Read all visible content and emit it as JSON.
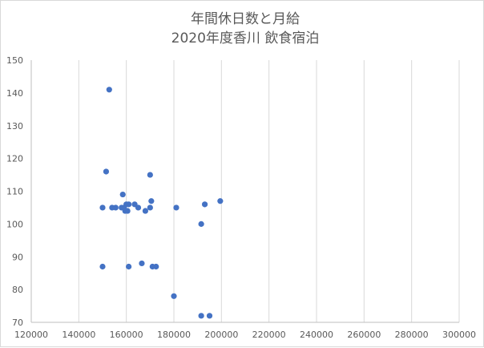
{
  "chart_data": {
    "type": "scatter",
    "title": [
      "年間休日数と月給",
      "2020年度香川 飲食宿泊"
    ],
    "xlabel": "",
    "ylabel": "",
    "xlim": [
      120000,
      300000
    ],
    "ylim": [
      70,
      150
    ],
    "x_ticks": [
      120000,
      140000,
      160000,
      180000,
      200000,
      220000,
      240000,
      260000,
      280000,
      300000
    ],
    "y_ticks": [
      70,
      80,
      90,
      100,
      110,
      120,
      130,
      140,
      150
    ],
    "grid": {
      "vertical": true,
      "horizontal": false
    },
    "series": [
      {
        "color": "#4472c4",
        "points": [
          [
            152800,
            141
          ],
          [
            151500,
            116
          ],
          [
            170000,
            115
          ],
          [
            158500,
            109
          ],
          [
            170500,
            107
          ],
          [
            199500,
            107
          ],
          [
            150000,
            105
          ],
          [
            154000,
            105
          ],
          [
            155500,
            105
          ],
          [
            158000,
            105
          ],
          [
            159000,
            105
          ],
          [
            160000,
            106
          ],
          [
            161000,
            106
          ],
          [
            163500,
            106
          ],
          [
            165000,
            105
          ],
          [
            170000,
            105
          ],
          [
            181000,
            105
          ],
          [
            193000,
            106
          ],
          [
            159500,
            104
          ],
          [
            160500,
            104
          ],
          [
            168000,
            104
          ],
          [
            191500,
            100
          ],
          [
            150000,
            87
          ],
          [
            161000,
            87
          ],
          [
            166500,
            88
          ],
          [
            171000,
            87
          ],
          [
            172500,
            87
          ],
          [
            180000,
            78
          ],
          [
            191500,
            72
          ],
          [
            195000,
            72
          ]
        ]
      }
    ]
  }
}
